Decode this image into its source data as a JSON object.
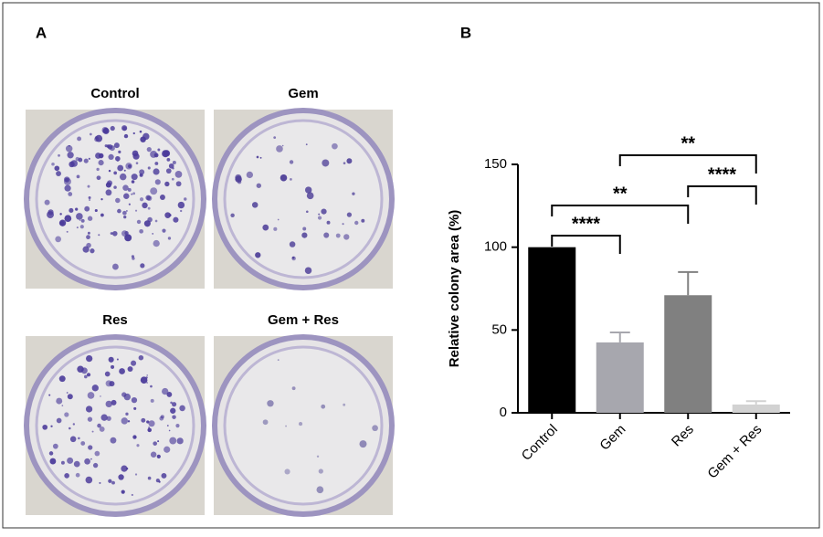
{
  "panels": {
    "a": "A",
    "b": "B"
  },
  "photos": [
    "Control",
    "Gem",
    "Res",
    "Gem + Res"
  ],
  "chart_data": {
    "type": "bar",
    "y_label": "Relative colony area (%)",
    "categories": [
      "Control",
      "Gem",
      "Res",
      "Gem + Res"
    ],
    "values": [
      100,
      42.5,
      71,
      5
    ],
    "errors": [
      0,
      6,
      14,
      2
    ],
    "colors": [
      "#000000",
      "#a7a7ae",
      "#808080",
      "#d2d2d2"
    ],
    "ylim": [
      0,
      150
    ],
    "yticks": [
      0,
      50,
      100,
      150
    ],
    "comparisons": [
      {
        "groups": [
          "Control",
          "Gem"
        ],
        "label": "****"
      },
      {
        "groups": [
          "Control",
          "Res"
        ],
        "label": "**"
      },
      {
        "groups": [
          "Res",
          "Gem + Res"
        ],
        "label": "****"
      },
      {
        "groups": [
          "Gem",
          "Gem + Res"
        ],
        "label": "**"
      }
    ]
  }
}
